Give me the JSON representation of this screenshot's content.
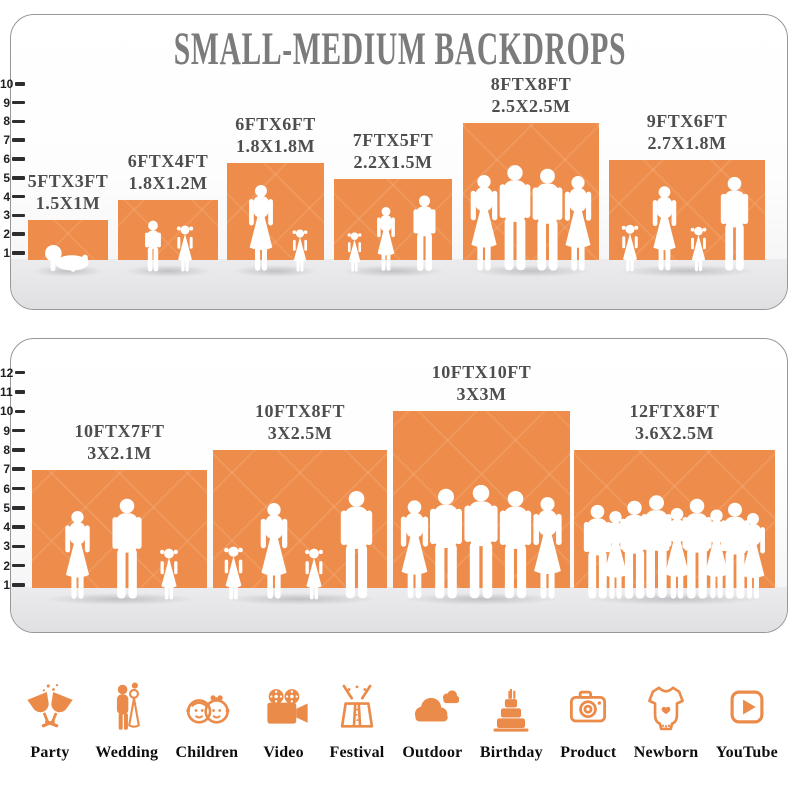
{
  "title": "SMALL-MEDIUM BACKDROPS",
  "colors": {
    "bar_orange": "#EE8D4B",
    "icon_orange": "#EB8B4A",
    "title_gray": "#7B7B7B",
    "size_label_gray": "#4E4E50",
    "floor_gray": "#E2E2E5",
    "tick_black": "#2E2E30",
    "category_label_black": "#0E0E0E"
  },
  "panels": [
    {
      "name": "small-medium-top",
      "ruler_ticks": [
        "1",
        "2",
        "3",
        "4",
        "5",
        "6",
        "7",
        "8",
        "9",
        "10"
      ],
      "backdrops": [
        {
          "size_ft": "5FTX3FT",
          "size_m": "1.5X1M"
        },
        {
          "size_ft": "6FTX4FT",
          "size_m": "1.8X1.2M"
        },
        {
          "size_ft": "6FTX6FT",
          "size_m": "1.8X1.8M"
        },
        {
          "size_ft": "7FTX5FT",
          "size_m": "2.2X1.5M"
        },
        {
          "size_ft": "8FTX8FT",
          "size_m": "2.5X2.5M"
        },
        {
          "size_ft": "9FTX6FT",
          "size_m": "2.7X1.8M"
        }
      ]
    },
    {
      "name": "small-medium-bottom",
      "ruler_ticks": [
        "1",
        "2",
        "3",
        "4",
        "5",
        "6",
        "7",
        "8",
        "9",
        "10",
        "11",
        "12"
      ],
      "backdrops": [
        {
          "size_ft": "10FTX7FT",
          "size_m": "3X2.1M"
        },
        {
          "size_ft": "10FTX8FT",
          "size_m": "3X2.5M"
        },
        {
          "size_ft": "10FTX10FT",
          "size_m": "3X3M"
        },
        {
          "size_ft": "12FTX8FT",
          "size_m": "3.6X2.5M"
        }
      ]
    }
  ],
  "categories": [
    {
      "label": "Party",
      "icon": "party-icon"
    },
    {
      "label": "Wedding",
      "icon": "wedding-icon"
    },
    {
      "label": "Children",
      "icon": "children-icon"
    },
    {
      "label": "Video",
      "icon": "video-icon"
    },
    {
      "label": "Festival",
      "icon": "festival-icon"
    },
    {
      "label": "Outdoor",
      "icon": "outdoor-icon"
    },
    {
      "label": "Birthday",
      "icon": "birthday-icon"
    },
    {
      "label": "Product",
      "icon": "product-icon"
    },
    {
      "label": "Newborn",
      "icon": "newborn-icon"
    },
    {
      "label": "YouTube",
      "icon": "youtube-icon"
    }
  ],
  "chart_data": [
    {
      "type": "bar",
      "title": "SMALL-MEDIUM BACKDROPS",
      "categories": [
        "5FTX3FT",
        "6FTX4FT",
        "6FTX6FT",
        "7FTX5FT",
        "8FTX8FT",
        "9FTX6FT"
      ],
      "values": [
        3,
        4,
        6,
        5,
        8,
        6
      ],
      "bar_widths_ft": [
        5,
        6,
        6,
        7,
        8,
        9
      ],
      "metric_labels": [
        "1.5X1M",
        "1.8X1.2M",
        "1.8X1.8M",
        "2.2X1.5M",
        "2.5X2.5M",
        "2.7X1.8M"
      ],
      "xlabel": "",
      "ylabel": "height (ft, ruler)",
      "ylim": [
        0,
        10
      ],
      "legend": false,
      "grid": false
    },
    {
      "type": "bar",
      "title": "",
      "categories": [
        "10FTX7FT",
        "10FTX8FT",
        "10FTX10FT",
        "12FTX8FT"
      ],
      "values": [
        7,
        8,
        10,
        8
      ],
      "bar_widths_ft": [
        10,
        10,
        10,
        12
      ],
      "metric_labels": [
        "3X2.1M",
        "3X2.5M",
        "3X3M",
        "3.6X2.5M"
      ],
      "xlabel": "",
      "ylabel": "height (ft, ruler)",
      "ylim": [
        0,
        12
      ],
      "legend": false,
      "grid": false
    }
  ]
}
